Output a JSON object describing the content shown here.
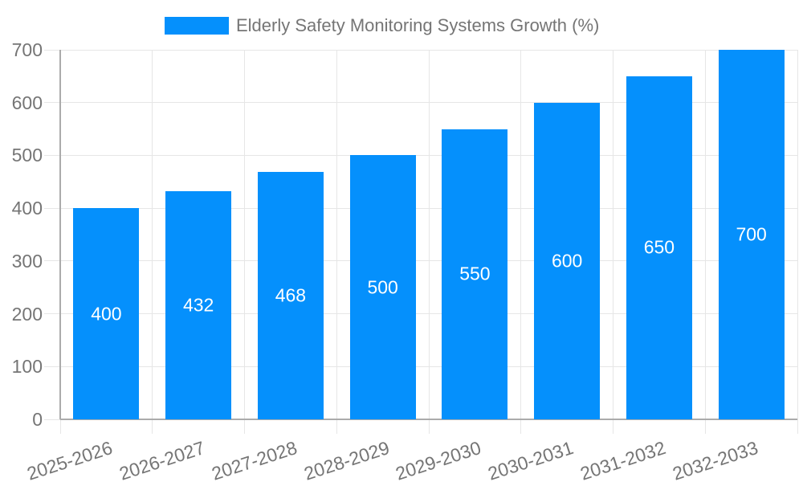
{
  "legend": {
    "label": "Elderly Safety Monitoring Systems Growth (%)"
  },
  "colors": {
    "bar": "#0590FC",
    "grid": "#E6E6E6",
    "axis": "#ABABAB",
    "tick_text": "#757575",
    "legend_text": "#757575",
    "bar_label_text": "#FFFFFF",
    "background": "#FFFFFF"
  },
  "chart_data": {
    "type": "bar",
    "title": "",
    "legend_label": "Elderly Safety Monitoring Systems Growth (%)",
    "legend_position": "top",
    "categories": [
      "2025-2026",
      "2026-2027",
      "2027-2028",
      "2028-2029",
      "2029-2030",
      "2030-2031",
      "2031-2032",
      "2032-2033"
    ],
    "values": [
      400,
      432,
      468,
      500,
      550,
      600,
      650,
      700
    ],
    "bar_value_labels_shown": true,
    "xlabel": "",
    "ylabel": "",
    "ylim": [
      0,
      700
    ],
    "yticks": [
      0,
      100,
      200,
      300,
      400,
      500,
      600,
      700
    ],
    "grid": true
  }
}
